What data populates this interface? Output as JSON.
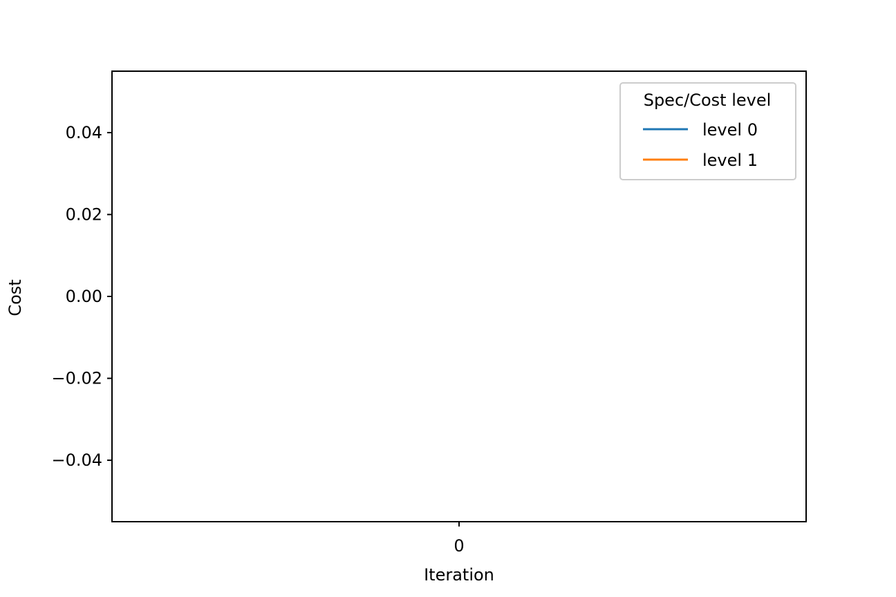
{
  "chart_data": {
    "type": "line",
    "title": "",
    "xlabel": "Iteration",
    "ylabel": "Cost",
    "x_ticks": [
      "0"
    ],
    "y_ticks": [
      0.04,
      0.02,
      0.0,
      -0.02,
      -0.04
    ],
    "y_tick_labels": [
      "0.04",
      "0.02",
      "0.00",
      "−0.02",
      "−0.04"
    ],
    "xlim": [
      -0.055,
      0.055
    ],
    "ylim": [
      -0.055,
      0.055
    ],
    "grid": false,
    "legend": {
      "title": "Spec/Cost level",
      "placement": "top-right"
    },
    "series": [
      {
        "name": "level 0",
        "color": "#1f77b4",
        "x": [],
        "y": []
      },
      {
        "name": "level 1",
        "color": "#ff7f0e",
        "x": [],
        "y": []
      }
    ]
  }
}
